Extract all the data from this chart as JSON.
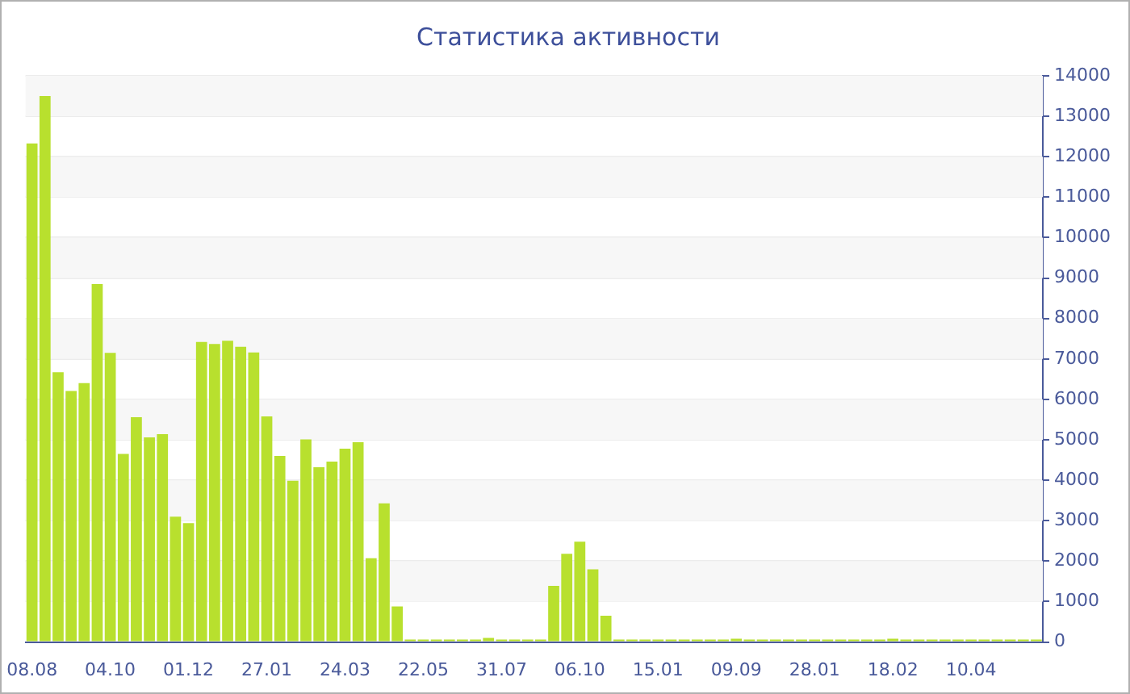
{
  "chart_data": {
    "type": "bar",
    "title": "Статистика активности",
    "categories": [
      "08.08",
      null,
      null,
      null,
      null,
      null,
      "04.10",
      null,
      null,
      null,
      null,
      null,
      "01.12",
      null,
      null,
      null,
      null,
      null,
      "27.01",
      null,
      null,
      null,
      null,
      null,
      "24.03",
      null,
      null,
      null,
      null,
      null,
      "22.05",
      null,
      null,
      null,
      null,
      null,
      "31.07",
      null,
      null,
      null,
      null,
      null,
      "06.10",
      null,
      null,
      null,
      null,
      null,
      "15.01",
      null,
      null,
      null,
      null,
      null,
      "09.09",
      null,
      null,
      null,
      null,
      null,
      "28.01",
      null,
      null,
      null,
      null,
      null,
      "18.02",
      null,
      null,
      null,
      null,
      null,
      "10.04",
      null,
      null,
      null,
      null,
      null
    ],
    "values": [
      12330,
      13500,
      6670,
      6210,
      6400,
      8850,
      7150,
      4650,
      5560,
      5060,
      5140,
      3100,
      2940,
      7420,
      7370,
      7450,
      7300,
      7160,
      5580,
      4600,
      3990,
      5010,
      4320,
      4460,
      4780,
      4940,
      2070,
      3430,
      880,
      60,
      60,
      60,
      60,
      60,
      60,
      100,
      60,
      60,
      60,
      60,
      1390,
      2180,
      2480,
      1800,
      650,
      60,
      60,
      60,
      60,
      60,
      60,
      60,
      60,
      60,
      80,
      60,
      60,
      60,
      60,
      60,
      60,
      60,
      60,
      60,
      60,
      60,
      80,
      60,
      60,
      60,
      60,
      60,
      60,
      60,
      60,
      60,
      60,
      60
    ],
    "color": "#b8e02e",
    "ylim": [
      0,
      14000
    ],
    "yticks": [
      0,
      1000,
      2000,
      3000,
      4000,
      5000,
      6000,
      7000,
      8000,
      9000,
      10000,
      11000,
      12000,
      13000,
      14000
    ],
    "grid": true
  }
}
